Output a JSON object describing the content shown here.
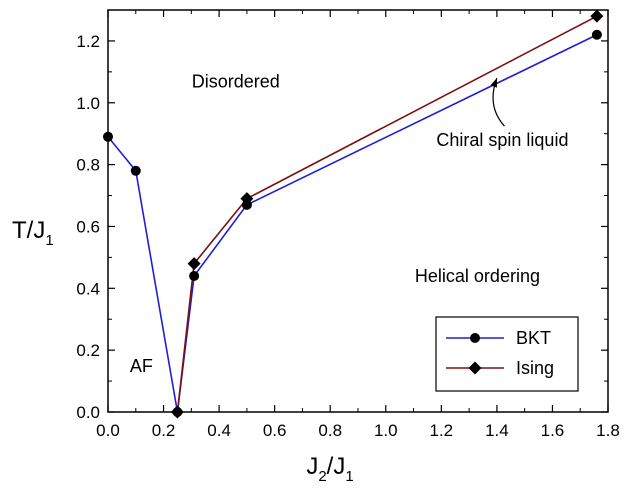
{
  "chart_data": {
    "type": "line",
    "title": "",
    "xlabel": {
      "main": "J",
      "sub1": "2",
      "sep": "/J",
      "sub2": "1"
    },
    "ylabel": {
      "main": "T/J",
      "sub": "1"
    },
    "xlim": [
      0.0,
      1.8
    ],
    "ylim": [
      0.0,
      1.3
    ],
    "xticks": [
      "0.0",
      "0.2",
      "0.4",
      "0.6",
      "0.8",
      "1.0",
      "1.2",
      "1.4",
      "1.6",
      "1.8"
    ],
    "yticks": [
      "0.0",
      "0.2",
      "0.4",
      "0.6",
      "0.8",
      "1.0",
      "1.2"
    ],
    "grid": false,
    "legend_position": "bottom-right",
    "series": [
      {
        "name": "BKT",
        "color": "#1f1fd6",
        "marker": "circle",
        "x": [
          0.0,
          0.1,
          0.25,
          0.31,
          0.5,
          1.76
        ],
        "y": [
          0.89,
          0.78,
          0.0,
          0.44,
          0.67,
          1.22
        ]
      },
      {
        "name": "Ising",
        "color": "#7a1010",
        "marker": "diamond",
        "x": [
          0.25,
          0.31,
          0.5,
          1.76
        ],
        "y": [
          0.0,
          0.48,
          0.69,
          1.28
        ]
      }
    ],
    "annotations": [
      {
        "text": "Disordered",
        "x": 0.46,
        "y": 1.05
      },
      {
        "text": "Helical ordering",
        "x": 1.33,
        "y": 0.42
      },
      {
        "text": "AF",
        "x": 0.12,
        "y": 0.13
      },
      {
        "text": "Chiral spin liquid",
        "x": 1.42,
        "y": 0.86,
        "arrow_to": [
          1.4,
          1.08
        ]
      }
    ]
  }
}
